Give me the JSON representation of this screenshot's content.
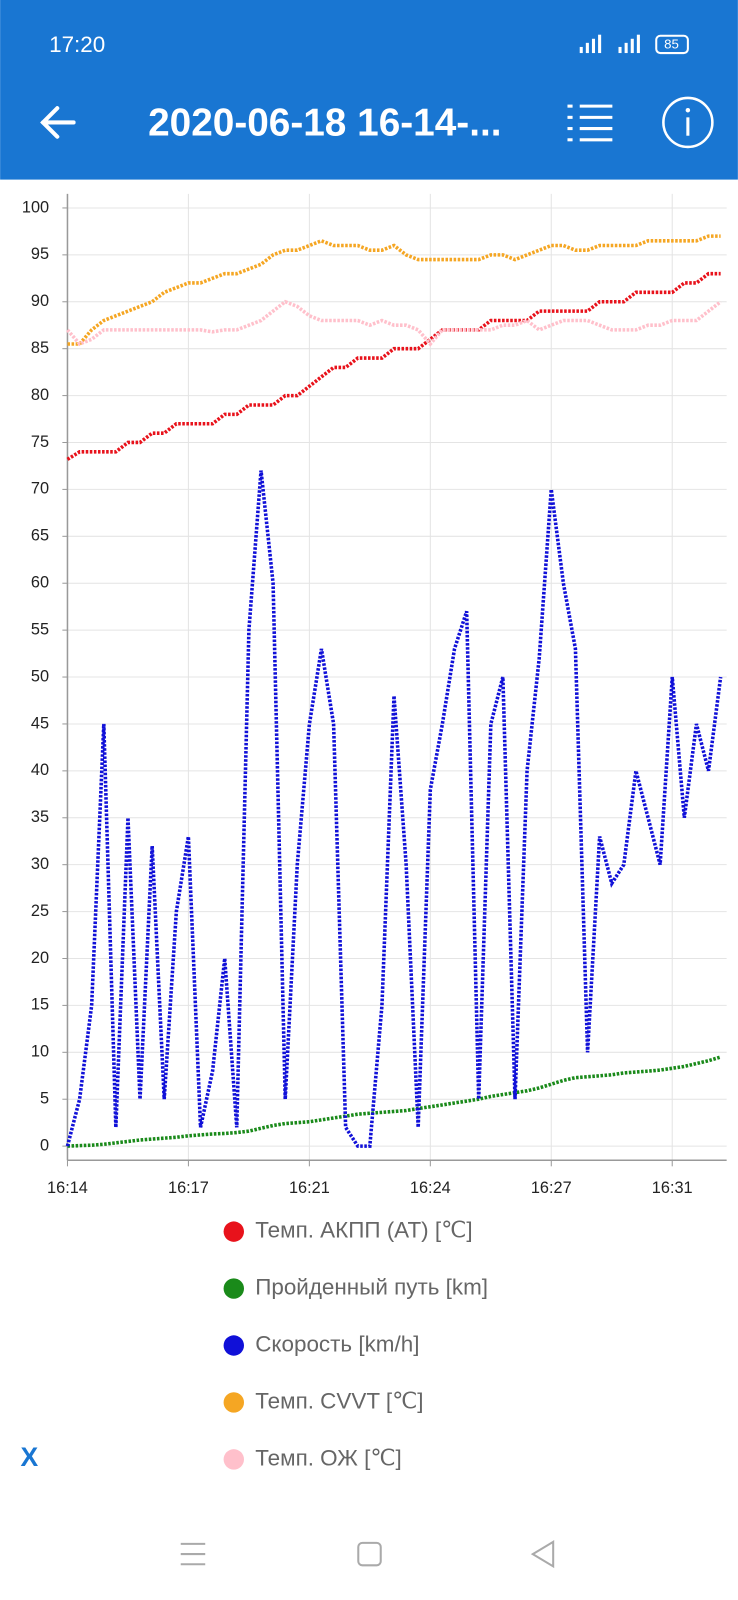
{
  "status_bar": {
    "time": "17:20",
    "battery": "85"
  },
  "header": {
    "title": "2020-06-18 16-14-..."
  },
  "footer": {
    "close": "X"
  },
  "chart_data": {
    "type": "line",
    "x": [
      "16:14:00",
      "16:14:20",
      "16:14:40",
      "16:15:00",
      "16:15:20",
      "16:15:40",
      "16:16:00",
      "16:16:20",
      "16:16:40",
      "16:17:00",
      "16:17:20",
      "16:17:40",
      "16:18:00",
      "16:18:20",
      "16:18:40",
      "16:19:00",
      "16:19:20",
      "16:19:40",
      "16:20:00",
      "16:20:20",
      "16:20:40",
      "16:21:00",
      "16:21:20",
      "16:21:40",
      "16:22:00",
      "16:22:20",
      "16:22:40",
      "16:23:00",
      "16:23:20",
      "16:23:40",
      "16:24:00",
      "16:24:20",
      "16:24:40",
      "16:25:00",
      "16:25:20",
      "16:25:40",
      "16:26:00",
      "16:26:20",
      "16:26:40",
      "16:27:00",
      "16:27:20",
      "16:27:40",
      "16:28:00",
      "16:28:20",
      "16:28:40",
      "16:29:00",
      "16:29:20",
      "16:29:40",
      "16:30:00",
      "16:30:20",
      "16:30:40",
      "16:31:00",
      "16:31:20",
      "16:31:40",
      "16:32:00"
    ],
    "xlim": [
      "16:14:00",
      "16:32:10"
    ],
    "xticks": [
      {
        "value": "16:14:00",
        "label": "16:14"
      },
      {
        "value": "16:17:20",
        "label": "16:17"
      },
      {
        "value": "16:20:40",
        "label": "16:21"
      },
      {
        "value": "16:24:00",
        "label": "16:24"
      },
      {
        "value": "16:27:20",
        "label": "16:27"
      },
      {
        "value": "16:30:40",
        "label": "16:31"
      }
    ],
    "ylim": [
      -1.5,
      101.5
    ],
    "yticks": [
      0,
      5,
      10,
      15,
      20,
      25,
      30,
      35,
      40,
      45,
      50,
      55,
      60,
      65,
      70,
      75,
      80,
      85,
      90,
      95,
      100
    ],
    "grid": true,
    "series": [
      {
        "name": "Темп. АКПП (AT) [℃]",
        "color": "#e8121b",
        "values": [
          73.2,
          74,
          74,
          74,
          74,
          75,
          75,
          76,
          76,
          77,
          77,
          77,
          77,
          78,
          78,
          79,
          79,
          79,
          80,
          80,
          81,
          82,
          83,
          83,
          84,
          84,
          84,
          85,
          85,
          85,
          86,
          87,
          87,
          87,
          87,
          88,
          88,
          88,
          88,
          89,
          89,
          89,
          89,
          89,
          90,
          90,
          90,
          91,
          91,
          91,
          91,
          92,
          92,
          93,
          93
        ]
      },
      {
        "name": "Пройденный путь [km]",
        "color": "#1a8a1a",
        "values": [
          0,
          0.05,
          0.1,
          0.2,
          0.35,
          0.5,
          0.65,
          0.75,
          0.85,
          0.95,
          1.1,
          1.2,
          1.3,
          1.35,
          1.45,
          1.6,
          1.9,
          2.2,
          2.4,
          2.5,
          2.6,
          2.8,
          3.0,
          3.2,
          3.4,
          3.5,
          3.6,
          3.7,
          3.8,
          4.0,
          4.2,
          4.4,
          4.6,
          4.8,
          5.0,
          5.3,
          5.5,
          5.7,
          5.9,
          6.2,
          6.6,
          7.0,
          7.3,
          7.4,
          7.5,
          7.6,
          7.8,
          7.9,
          8.0,
          8.1,
          8.3,
          8.5,
          8.8,
          9.1,
          9.5
        ]
      },
      {
        "name": "Скорость [km/h]",
        "color": "#1010d8",
        "values": [
          0,
          5,
          15,
          45,
          2,
          35,
          5,
          32,
          5,
          25,
          33,
          2,
          8,
          20,
          2,
          55,
          72,
          60,
          5,
          30,
          45,
          53,
          45,
          2,
          0,
          0,
          15,
          48,
          30,
          2,
          38,
          45,
          53,
          57,
          5,
          45,
          50,
          5,
          40,
          52,
          70,
          60,
          53,
          10,
          33,
          28,
          30,
          40,
          35,
          30,
          50,
          35,
          45,
          40,
          50
        ]
      },
      {
        "name": "Темп. CVVT [℃]",
        "color": "#f5a623",
        "values": [
          85.5,
          85.5,
          87,
          88,
          88.5,
          89,
          89.5,
          90,
          91,
          91.5,
          92,
          92,
          92.5,
          93,
          93,
          93.5,
          94,
          95,
          95.5,
          95.5,
          96,
          96.5,
          96,
          96,
          96,
          95.5,
          95.5,
          96,
          95,
          94.5,
          94.5,
          94.5,
          94.5,
          94.5,
          94.5,
          95,
          95,
          94.5,
          95,
          95.5,
          96,
          96,
          95.5,
          95.5,
          96,
          96,
          96,
          96,
          96.5,
          96.5,
          96.5,
          96.5,
          96.5,
          97,
          97
        ]
      },
      {
        "name": "Темп. ОЖ [℃]",
        "color": "#ffc0cb",
        "values": [
          87,
          85.5,
          86,
          87,
          87,
          87,
          87,
          87,
          87,
          87,
          87,
          87,
          86.8,
          87,
          87,
          87.5,
          88,
          89,
          90,
          89.5,
          88.5,
          88,
          88,
          88,
          88,
          87.5,
          88,
          87.5,
          87.5,
          87,
          85.5,
          87,
          87,
          87,
          87,
          87,
          87.5,
          87.5,
          88,
          87,
          87.5,
          88,
          88,
          88,
          87.5,
          87,
          87,
          87,
          87.5,
          87.5,
          88,
          88,
          88,
          89,
          90
        ]
      }
    ]
  }
}
